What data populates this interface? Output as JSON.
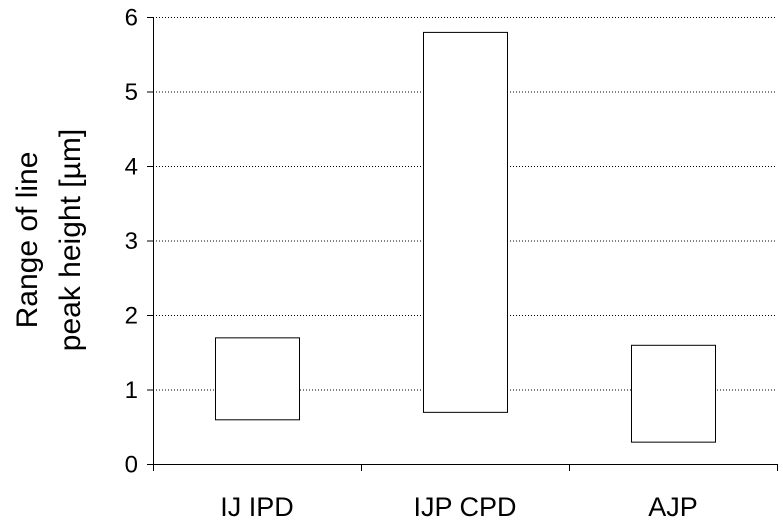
{
  "chart_data": {
    "type": "bar",
    "subtype": "floating-range",
    "title": "",
    "xlabel": "",
    "ylabel_lines": [
      "Range of line",
      "peak height [µm]"
    ],
    "categories": [
      "IJ IPD",
      "IJP CPD",
      "AJP"
    ],
    "series": [
      {
        "low": [
          0.6,
          0.7,
          0.3
        ],
        "high": [
          1.7,
          5.8,
          1.6
        ]
      }
    ],
    "ylim": [
      0,
      6
    ],
    "yticks": [
      0,
      1,
      2,
      3,
      4,
      5,
      6
    ],
    "grid": "horizontal-dotted",
    "legend": "none",
    "colors": {
      "bar_fill": "#ffffff",
      "bar_stroke": "#000000",
      "axis": "#000000",
      "grid": "#000000"
    }
  }
}
